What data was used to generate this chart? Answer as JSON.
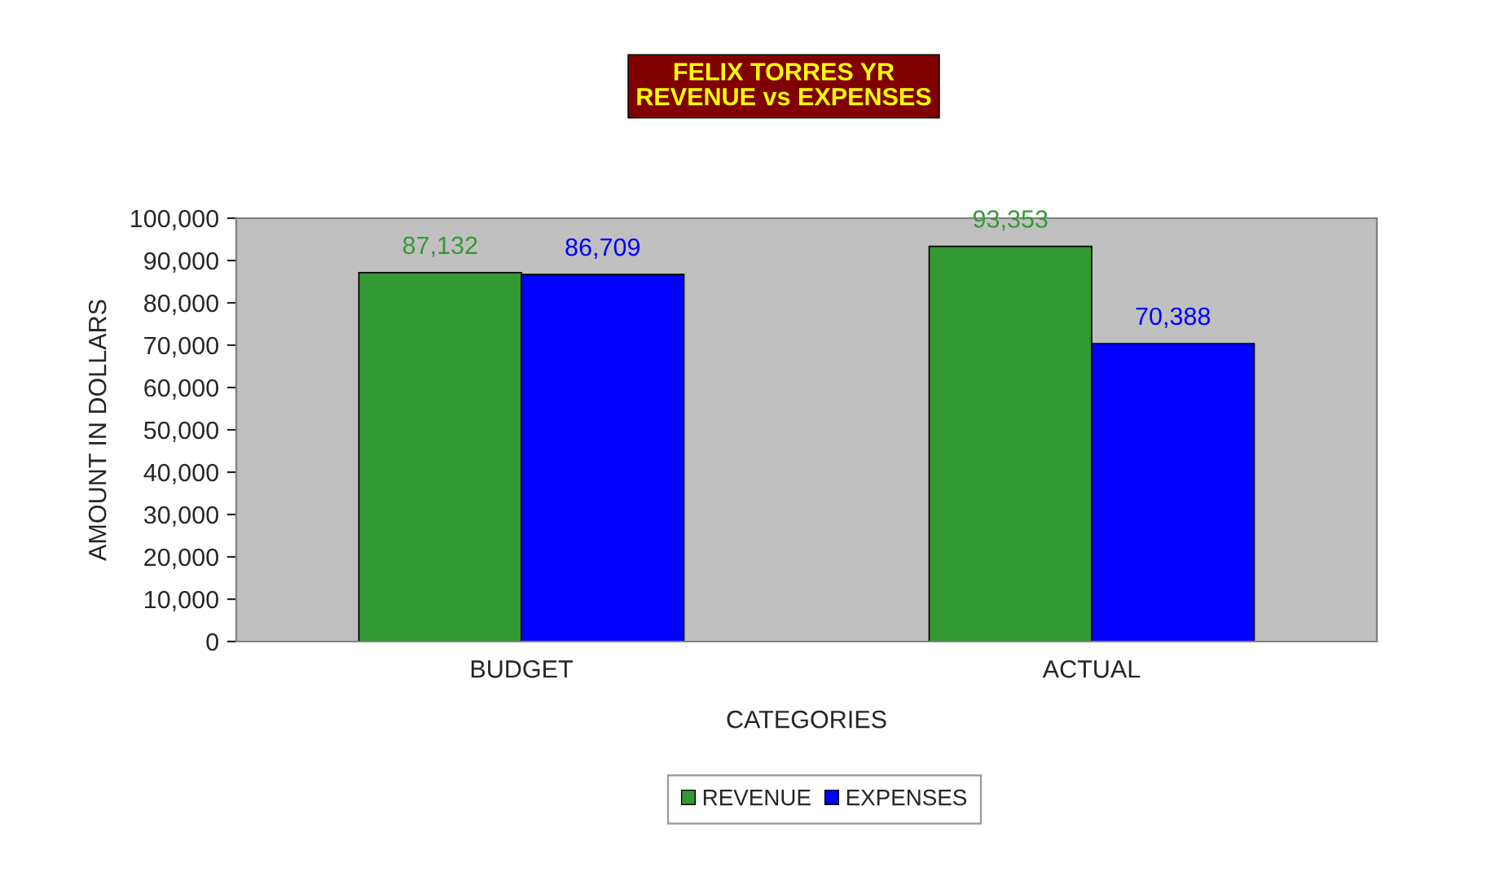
{
  "chart_data": {
    "type": "bar",
    "title": "FELIX TORRES YR\nREVENUE vs EXPENSES",
    "xlabel": "CATEGORIES",
    "ylabel": "AMOUNT IN DOLLARS",
    "categories": [
      "BUDGET",
      "ACTUAL"
    ],
    "series": [
      {
        "name": "REVENUE",
        "color": "#339933",
        "values": [
          87132,
          93353
        ],
        "value_labels": [
          "87,132",
          "93,353"
        ]
      },
      {
        "name": "EXPENSES",
        "color": "#0000ff",
        "values": [
          86709,
          70388
        ],
        "value_labels": [
          "86,709",
          "70,388"
        ]
      }
    ],
    "ylim": [
      0,
      100000
    ],
    "yticks": [
      0,
      {
        "value": 10000,
        "label": "10,000"
      },
      {
        "value": 20000,
        "label": "20,000"
      },
      {
        "value": 30000,
        "label": "30,000"
      },
      {
        "value": 40000,
        "label": "40,000"
      },
      {
        "value": 50000,
        "label": "50,000"
      },
      {
        "value": 60000,
        "label": "60,000"
      },
      {
        "value": 70000,
        "label": "70,000"
      },
      {
        "value": 80000,
        "label": "80,000"
      },
      {
        "value": 90000,
        "label": "90,000"
      },
      {
        "value": 100000,
        "label": "100,000"
      }
    ],
    "grid": false,
    "legend": "bottom"
  }
}
